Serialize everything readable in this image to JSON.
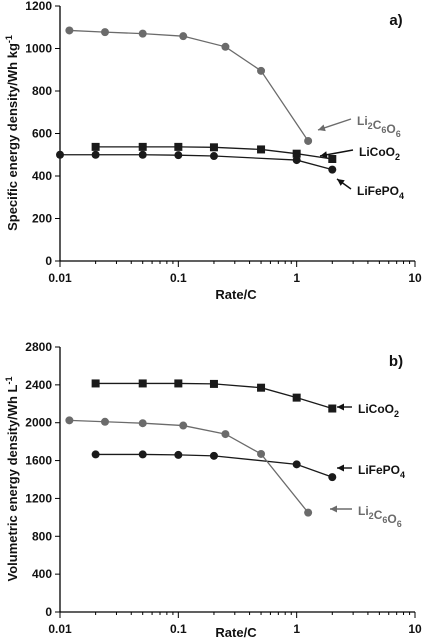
{
  "chart_data": [
    {
      "type": "line",
      "panel_label": "a)",
      "xlabel": "Rate/C",
      "ylabel": "Specific energy density/Wh kg",
      "ylabel_sup": "-1",
      "x_scale": "log",
      "xlim": [
        0.01,
        10
      ],
      "ylim": [
        0,
        1200
      ],
      "x_ticks": [
        0.01,
        0.1,
        1,
        10
      ],
      "x_tick_labels": [
        "0.01",
        "0.1",
        "1",
        "10"
      ],
      "y_ticks": [
        0,
        200,
        400,
        600,
        800,
        1000,
        1200
      ],
      "y_tick_labels": [
        "0",
        "200",
        "400",
        "600",
        "800",
        "1000",
        "1200"
      ],
      "series": [
        {
          "name_main": "Li",
          "name_parts": [
            {
              "t": "Li",
              "sub": false
            },
            {
              "t": "2",
              "sub": true
            },
            {
              "t": "C",
              "sub": false
            },
            {
              "t": "6",
              "sub": true
            },
            {
              "t": "O",
              "sub": false
            },
            {
              "t": "6",
              "sub": true
            }
          ],
          "color": "#6b6b6b",
          "marker": "circle",
          "x": [
            0.012,
            0.024,
            0.05,
            0.11,
            0.25,
            0.5,
            1.25
          ],
          "y": [
            1085,
            1077,
            1070,
            1058,
            1008,
            895,
            565
          ]
        },
        {
          "name_parts": [
            {
              "t": "LiCoO",
              "sub": false
            },
            {
              "t": "2",
              "sub": true
            }
          ],
          "color": "#1a1a1a",
          "marker": "square",
          "x": [
            0.02,
            0.05,
            0.1,
            0.2,
            0.5,
            1,
            2
          ],
          "y": [
            537,
            537,
            537,
            535,
            525,
            505,
            480
          ]
        },
        {
          "name_parts": [
            {
              "t": "LiFePO",
              "sub": false
            },
            {
              "t": "4",
              "sub": true
            }
          ],
          "color": "#1a1a1a",
          "marker": "circle",
          "x": [
            0.01,
            0.02,
            0.05,
            0.1,
            0.2,
            1,
            2
          ],
          "y": [
            500,
            500,
            500,
            498,
            494,
            475,
            430
          ]
        }
      ]
    },
    {
      "type": "line",
      "panel_label": "b)",
      "xlabel": "Rate/C",
      "ylabel": "Volumetric energy density/Wh L",
      "ylabel_sup": "-1",
      "x_scale": "log",
      "xlim": [
        0.01,
        10
      ],
      "ylim": [
        0,
        2800
      ],
      "x_ticks": [
        0.01,
        0.1,
        1,
        10
      ],
      "x_tick_labels": [
        "0.01",
        "0.1",
        "1",
        "10"
      ],
      "y_ticks": [
        0,
        400,
        800,
        1200,
        1600,
        2000,
        2400,
        2800
      ],
      "y_tick_labels": [
        "0",
        "400",
        "800",
        "1200",
        "1600",
        "2000",
        "2400",
        "2800"
      ],
      "series": [
        {
          "name_parts": [
            {
              "t": "LiCoO",
              "sub": false
            },
            {
              "t": "2",
              "sub": true
            }
          ],
          "color": "#1a1a1a",
          "marker": "square",
          "x": [
            0.02,
            0.05,
            0.1,
            0.2,
            0.5,
            1,
            2
          ],
          "y": [
            2415,
            2415,
            2415,
            2410,
            2370,
            2265,
            2150
          ]
        },
        {
          "name_parts": [
            {
              "t": "LiFePO",
              "sub": false
            },
            {
              "t": "4",
              "sub": true
            }
          ],
          "color": "#1a1a1a",
          "marker": "circle",
          "x": [
            0.02,
            0.05,
            0.1,
            0.2,
            1,
            2
          ],
          "y": [
            1665,
            1665,
            1660,
            1650,
            1560,
            1425
          ]
        },
        {
          "name_parts": [
            {
              "t": "Li",
              "sub": false
            },
            {
              "t": "2",
              "sub": true
            },
            {
              "t": "C",
              "sub": false
            },
            {
              "t": "6",
              "sub": true
            },
            {
              "t": "O",
              "sub": false
            },
            {
              "t": "6",
              "sub": true
            }
          ],
          "color": "#6b6b6b",
          "marker": "circle",
          "x": [
            0.012,
            0.024,
            0.05,
            0.11,
            0.25,
            0.5,
            1.25
          ],
          "y": [
            2025,
            2010,
            1995,
            1970,
            1880,
            1670,
            1050
          ]
        }
      ]
    }
  ]
}
